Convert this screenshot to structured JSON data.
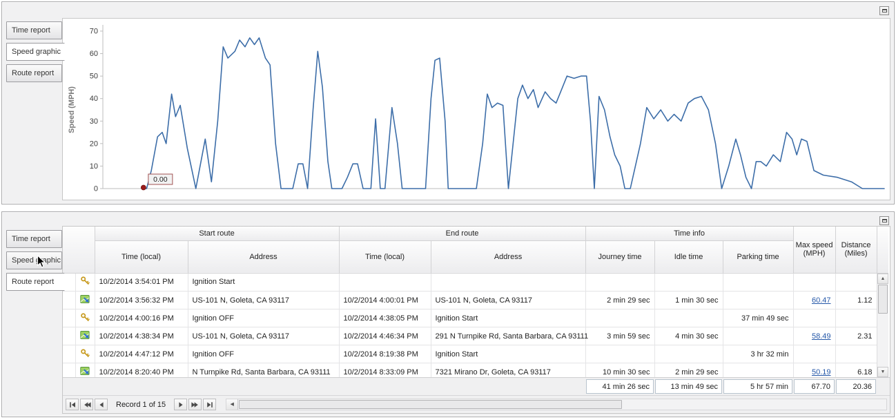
{
  "top_panel": {
    "tabs": [
      {
        "label": "Time report",
        "selected": false
      },
      {
        "label": "Speed graphic",
        "selected": true
      },
      {
        "label": "Route report",
        "selected": false
      }
    ]
  },
  "chart_data": {
    "type": "line",
    "title": "",
    "xlabel": "",
    "ylabel": "Speed (MPH)",
    "ylim": [
      0,
      70
    ],
    "yticks": [
      0,
      10,
      20,
      30,
      40,
      50,
      60,
      70
    ],
    "grid": false,
    "legend": "none",
    "line_color": "#3c6da8",
    "series_name": "Speed",
    "start_marker": {
      "label": "0.00",
      "value": 0,
      "color": "#9b1b1b"
    },
    "points": [
      [
        0.052,
        0
      ],
      [
        0.056,
        0
      ],
      [
        0.062,
        8
      ],
      [
        0.07,
        23
      ],
      [
        0.076,
        25
      ],
      [
        0.081,
        20
      ],
      [
        0.088,
        42
      ],
      [
        0.093,
        32
      ],
      [
        0.099,
        37
      ],
      [
        0.108,
        18
      ],
      [
        0.119,
        0
      ],
      [
        0.131,
        22
      ],
      [
        0.139,
        3
      ],
      [
        0.147,
        30
      ],
      [
        0.154,
        63
      ],
      [
        0.16,
        58
      ],
      [
        0.169,
        61
      ],
      [
        0.175,
        66
      ],
      [
        0.182,
        63
      ],
      [
        0.188,
        67
      ],
      [
        0.194,
        64
      ],
      [
        0.2,
        67
      ],
      [
        0.208,
        58
      ],
      [
        0.214,
        55
      ],
      [
        0.221,
        20
      ],
      [
        0.228,
        0
      ],
      [
        0.243,
        0
      ],
      [
        0.25,
        11
      ],
      [
        0.256,
        11
      ],
      [
        0.262,
        0
      ],
      [
        0.269,
        35
      ],
      [
        0.275,
        61
      ],
      [
        0.281,
        45
      ],
      [
        0.288,
        12
      ],
      [
        0.293,
        0
      ],
      [
        0.306,
        0
      ],
      [
        0.313,
        5
      ],
      [
        0.32,
        11
      ],
      [
        0.326,
        11
      ],
      [
        0.333,
        0
      ],
      [
        0.343,
        0
      ],
      [
        0.349,
        31
      ],
      [
        0.355,
        0
      ],
      [
        0.361,
        0
      ],
      [
        0.37,
        36
      ],
      [
        0.377,
        20
      ],
      [
        0.383,
        0
      ],
      [
        0.413,
        0
      ],
      [
        0.42,
        40
      ],
      [
        0.425,
        57
      ],
      [
        0.431,
        58
      ],
      [
        0.438,
        30
      ],
      [
        0.442,
        0
      ],
      [
        0.478,
        0
      ],
      [
        0.486,
        20
      ],
      [
        0.492,
        42
      ],
      [
        0.498,
        36
      ],
      [
        0.505,
        38
      ],
      [
        0.512,
        37
      ],
      [
        0.519,
        0
      ],
      [
        0.525,
        20
      ],
      [
        0.531,
        40
      ],
      [
        0.537,
        46
      ],
      [
        0.544,
        40
      ],
      [
        0.551,
        44
      ],
      [
        0.557,
        36
      ],
      [
        0.566,
        43
      ],
      [
        0.573,
        40
      ],
      [
        0.58,
        38
      ],
      [
        0.587,
        44
      ],
      [
        0.594,
        50
      ],
      [
        0.603,
        49
      ],
      [
        0.612,
        50
      ],
      [
        0.619,
        50
      ],
      [
        0.624,
        30
      ],
      [
        0.629,
        0
      ],
      [
        0.635,
        41
      ],
      [
        0.642,
        35
      ],
      [
        0.649,
        23
      ],
      [
        0.655,
        15
      ],
      [
        0.662,
        10
      ],
      [
        0.668,
        0
      ],
      [
        0.675,
        0
      ],
      [
        0.688,
        20
      ],
      [
        0.696,
        36
      ],
      [
        0.705,
        31
      ],
      [
        0.714,
        35
      ],
      [
        0.723,
        30
      ],
      [
        0.731,
        33
      ],
      [
        0.74,
        30
      ],
      [
        0.749,
        38
      ],
      [
        0.757,
        40
      ],
      [
        0.766,
        41
      ],
      [
        0.775,
        35
      ],
      [
        0.784,
        20
      ],
      [
        0.792,
        0
      ],
      [
        0.801,
        10
      ],
      [
        0.81,
        22
      ],
      [
        0.816,
        15
      ],
      [
        0.823,
        5
      ],
      [
        0.83,
        0
      ],
      [
        0.836,
        12
      ],
      [
        0.842,
        12
      ],
      [
        0.849,
        10
      ],
      [
        0.858,
        15
      ],
      [
        0.867,
        12
      ],
      [
        0.875,
        25
      ],
      [
        0.882,
        22
      ],
      [
        0.888,
        15
      ],
      [
        0.894,
        22
      ],
      [
        0.901,
        21
      ],
      [
        0.91,
        8
      ],
      [
        0.922,
        6
      ],
      [
        0.94,
        5
      ],
      [
        0.958,
        3
      ],
      [
        0.972,
        0
      ],
      [
        1.0,
        0
      ]
    ]
  },
  "bottom_panel": {
    "tabs": [
      {
        "label": "Time report",
        "selected": false
      },
      {
        "label": "Speed graphic",
        "selected": false
      },
      {
        "label": "Route report",
        "selected": true
      }
    ],
    "table": {
      "groups": [
        {
          "label": "Start route"
        },
        {
          "label": "End route"
        },
        {
          "label": "Time info"
        }
      ],
      "columns": [
        "Time (local)",
        "Address",
        "Time (local)",
        "Address",
        "Journey time",
        "Idle time",
        "Parking time"
      ],
      "span_columns": [
        "Max speed (MPH)",
        "Distance (Miles)"
      ],
      "rows": [
        {
          "icon": "key",
          "cells": [
            "10/2/2014 3:54:01 PM",
            "Ignition Start",
            "",
            "",
            "",
            "",
            "",
            "",
            ""
          ]
        },
        {
          "icon": "route",
          "cells": [
            "10/2/2014 3:56:32 PM",
            "US-101 N, Goleta, CA 93117",
            "10/2/2014 4:00:01 PM",
            "US-101 N, Goleta, CA 93117",
            "2 min 29 sec",
            "1 min 30 sec",
            "",
            "60.47",
            "1.12"
          ]
        },
        {
          "icon": "key",
          "cells": [
            "10/2/2014 4:00:16 PM",
            "Ignition OFF",
            "10/2/2014 4:38:05 PM",
            "Ignition Start",
            "",
            "",
            "37 min 49 sec",
            "",
            ""
          ]
        },
        {
          "icon": "route",
          "cells": [
            "10/2/2014 4:38:34 PM",
            "US-101 N, Goleta, CA 93117",
            "10/2/2014 4:46:34 PM",
            "291 N Turnpike Rd, Santa Barbara, CA 93111",
            "3 min 59 sec",
            "4 min 30 sec",
            "",
            "58.49",
            "2.31"
          ]
        },
        {
          "icon": "key",
          "cells": [
            "10/2/2014 4:47:12 PM",
            "Ignition OFF",
            "10/2/2014 8:19:38 PM",
            "Ignition Start",
            "",
            "",
            "3 hr 32 min",
            "",
            ""
          ]
        },
        {
          "icon": "route",
          "cells": [
            "10/2/2014 8:20:40 PM",
            "N Turnpike Rd, Santa Barbara, CA 93111",
            "10/2/2014 8:33:09 PM",
            "7321 Mirano Dr, Goleta, CA 93117",
            "10 min 30 sec",
            "2 min 29 sec",
            "",
            "50.19",
            "6.18"
          ]
        }
      ],
      "summary": {
        "journey_time": "41 min 26 sec",
        "idle_time": "13 min 49 sec",
        "parking_time": "5 hr 57 min",
        "max_speed": "67.70",
        "distance": "20.36"
      }
    },
    "pager": {
      "buttons_left": [
        "first",
        "prev-page",
        "prev"
      ],
      "label": "Record 1 of 15",
      "buttons_right": [
        "next",
        "next-page",
        "last"
      ]
    }
  }
}
